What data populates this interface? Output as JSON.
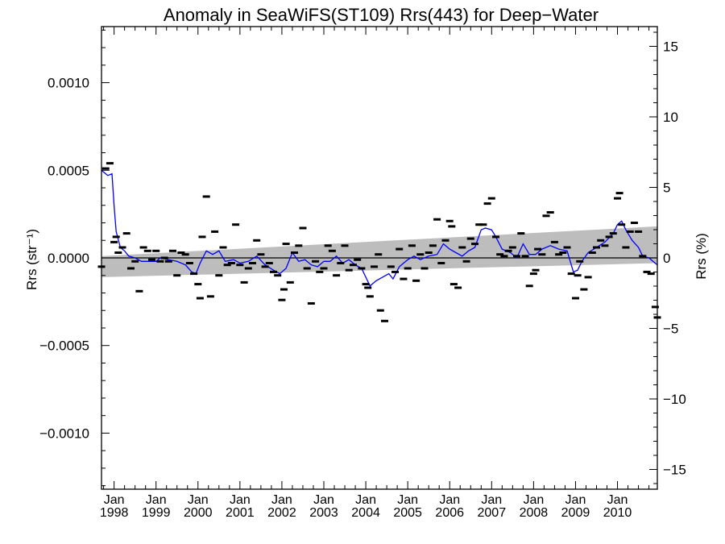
{
  "chart_data": {
    "type": "scatter",
    "title": "Anomaly in SeaWiFS(ST109) Rrs(443) for Deep−Water",
    "ylabel_left": "Rrs (str⁻¹)",
    "ylabel_right": "Rrs (%)",
    "ylim_left": [
      -0.00132,
      0.00132
    ],
    "ylim_right": [
      -16.4,
      16.4
    ],
    "xlim": [
      1997.7,
      2010.95
    ],
    "left_ticks": [
      {
        "value": 0.001,
        "label": "0.0010"
      },
      {
        "value": 0.0005,
        "label": "0.0005"
      },
      {
        "value": 0.0,
        "label": "0.0000"
      },
      {
        "value": -0.0005,
        "label": "−0.0005"
      },
      {
        "value": -0.001,
        "label": "−0.0010"
      }
    ],
    "right_ticks": [
      {
        "value": 15,
        "label": "15"
      },
      {
        "value": 10,
        "label": "10"
      },
      {
        "value": 5,
        "label": "5"
      },
      {
        "value": 0,
        "label": "0"
      },
      {
        "value": -5,
        "label": "−5"
      },
      {
        "value": -10,
        "label": "−10"
      },
      {
        "value": -15,
        "label": "−15"
      }
    ],
    "x_ticks": [
      {
        "value": 1998.0,
        "month": "Jan",
        "year": "1998"
      },
      {
        "value": 1999.0,
        "month": "Jan",
        "year": "1999"
      },
      {
        "value": 2000.0,
        "month": "Jan",
        "year": "2000"
      },
      {
        "value": 2001.0,
        "month": "Jan",
        "year": "2001"
      },
      {
        "value": 2002.0,
        "month": "Jan",
        "year": "2002"
      },
      {
        "value": 2003.0,
        "month": "Jan",
        "year": "2003"
      },
      {
        "value": 2004.0,
        "month": "Jan",
        "year": "2004"
      },
      {
        "value": 2005.0,
        "month": "Jan",
        "year": "2005"
      },
      {
        "value": 2006.0,
        "month": "Jan",
        "year": "2006"
      },
      {
        "value": 2007.0,
        "month": "Jan",
        "year": "2007"
      },
      {
        "value": 2008.0,
        "month": "Jan",
        "year": "2008"
      },
      {
        "value": 2009.0,
        "month": "Jan",
        "year": "2009"
      },
      {
        "value": 2010.0,
        "month": "Jan",
        "year": "2010"
      }
    ],
    "x_minor_step": 0.25,
    "colors": {
      "running_mean": "#0000ff",
      "band": "#bdbdbd",
      "points": "#000000",
      "zero_line": "#000000"
    },
    "trend_band": {
      "x": [
        1997.7,
        2010.95
      ],
      "upper": [
        1e-05,
        0.00018
      ],
      "lower": [
        -0.00011,
        -3e-05
      ]
    },
    "points": [
      [
        1997.7,
        -5e-05
      ],
      [
        1997.8,
        0.00051
      ],
      [
        1997.9,
        0.00054
      ],
      [
        1998.0,
        9e-05
      ],
      [
        1998.05,
        0.00012
      ],
      [
        1998.1,
        3e-05
      ],
      [
        1998.2,
        6e-05
      ],
      [
        1998.3,
        0.00014
      ],
      [
        1998.4,
        -6e-05
      ],
      [
        1998.5,
        -2e-05
      ],
      [
        1998.6,
        -0.00019
      ],
      [
        1998.7,
        6e-05
      ],
      [
        1998.8,
        4e-05
      ],
      [
        1998.9,
        -1e-05
      ],
      [
        1999.0,
        4e-05
      ],
      [
        1999.1,
        -2e-05
      ],
      [
        1999.2,
        0.0
      ],
      [
        1999.3,
        -2e-05
      ],
      [
        1999.4,
        4e-05
      ],
      [
        1999.5,
        -0.0001
      ],
      [
        1999.6,
        3e-05
      ],
      [
        1999.7,
        2e-05
      ],
      [
        1999.8,
        -3e-05
      ],
      [
        1999.9,
        -9e-05
      ],
      [
        2000.0,
        -0.00015
      ],
      [
        2000.05,
        -0.00023
      ],
      [
        2000.1,
        0.00012
      ],
      [
        2000.2,
        0.00035
      ],
      [
        2000.3,
        -0.00022
      ],
      [
        2000.4,
        0.00015
      ],
      [
        2000.5,
        -0.0001
      ],
      [
        2000.6,
        6e-05
      ],
      [
        2000.7,
        -4e-05
      ],
      [
        2000.8,
        -3e-05
      ],
      [
        2000.9,
        0.00019
      ],
      [
        2001.0,
        -4e-05
      ],
      [
        2001.1,
        -0.00014
      ],
      [
        2001.2,
        -6e-05
      ],
      [
        2001.3,
        -3e-05
      ],
      [
        2001.4,
        0.0001
      ],
      [
        2001.5,
        2e-05
      ],
      [
        2001.6,
        -5e-05
      ],
      [
        2001.7,
        -3e-05
      ],
      [
        2001.8,
        -8e-05
      ],
      [
        2001.9,
        -0.0001
      ],
      [
        2002.0,
        -0.00024
      ],
      [
        2002.05,
        -0.00018
      ],
      [
        2002.1,
        8e-05
      ],
      [
        2002.2,
        -0.00014
      ],
      [
        2002.3,
        3e-05
      ],
      [
        2002.4,
        7e-05
      ],
      [
        2002.5,
        0.00017
      ],
      [
        2002.6,
        -6e-05
      ],
      [
        2002.7,
        -0.00026
      ],
      [
        2002.8,
        -2e-05
      ],
      [
        2002.9,
        -8e-05
      ],
      [
        2003.0,
        -6e-05
      ],
      [
        2003.1,
        7e-05
      ],
      [
        2003.2,
        4e-05
      ],
      [
        2003.3,
        -0.0001
      ],
      [
        2003.4,
        -3e-05
      ],
      [
        2003.5,
        7e-05
      ],
      [
        2003.6,
        -7e-05
      ],
      [
        2003.7,
        -4e-05
      ],
      [
        2003.8,
        -1e-05
      ],
      [
        2003.9,
        -6e-05
      ],
      [
        2004.0,
        -0.00015
      ],
      [
        2004.05,
        -0.00017
      ],
      [
        2004.1,
        -0.00022
      ],
      [
        2004.2,
        -5e-05
      ],
      [
        2004.3,
        2e-05
      ],
      [
        2004.35,
        -0.0003
      ],
      [
        2004.45,
        -0.00036
      ],
      [
        2004.6,
        -5e-05
      ],
      [
        2004.7,
        -8e-05
      ],
      [
        2004.8,
        5e-05
      ],
      [
        2004.9,
        -0.00012
      ],
      [
        2005.0,
        -6e-05
      ],
      [
        2005.1,
        7e-05
      ],
      [
        2005.2,
        -0.00013
      ],
      [
        2005.3,
        2e-05
      ],
      [
        2005.4,
        -6e-05
      ],
      [
        2005.5,
        3e-05
      ],
      [
        2005.6,
        7e-05
      ],
      [
        2005.7,
        0.00022
      ],
      [
        2005.8,
        -3e-05
      ],
      [
        2005.9,
        0.0001
      ],
      [
        2006.0,
        0.00021
      ],
      [
        2006.05,
        0.00018
      ],
      [
        2006.1,
        -0.00015
      ],
      [
        2006.2,
        -0.00017
      ],
      [
        2006.3,
        6e-05
      ],
      [
        2006.4,
        -2e-05
      ],
      [
        2006.5,
        0.00011
      ],
      [
        2006.6,
        8e-05
      ],
      [
        2006.7,
        0.00019
      ],
      [
        2006.8,
        0.00019
      ],
      [
        2006.9,
        0.00031
      ],
      [
        2007.0,
        0.00034
      ],
      [
        2007.1,
        0.00012
      ],
      [
        2007.2,
        2e-05
      ],
      [
        2007.3,
        1e-05
      ],
      [
        2007.4,
        4e-05
      ],
      [
        2007.5,
        6e-05
      ],
      [
        2007.6,
        1e-05
      ],
      [
        2007.7,
        0.00014
      ],
      [
        2007.8,
        1e-05
      ],
      [
        2007.9,
        -0.00016
      ],
      [
        2008.0,
        -9e-05
      ],
      [
        2008.05,
        -7e-05
      ],
      [
        2008.1,
        5e-05
      ],
      [
        2008.2,
        2e-05
      ],
      [
        2008.3,
        0.00024
      ],
      [
        2008.4,
        0.00026
      ],
      [
        2008.5,
        9e-05
      ],
      [
        2008.6,
        2e-05
      ],
      [
        2008.7,
        3e-05
      ],
      [
        2008.8,
        6e-05
      ],
      [
        2008.9,
        -9e-05
      ],
      [
        2009.0,
        -0.00023
      ],
      [
        2009.05,
        -0.0001
      ],
      [
        2009.1,
        -2e-05
      ],
      [
        2009.2,
        -0.00018
      ],
      [
        2009.3,
        -0.00011
      ],
      [
        2009.4,
        3e-05
      ],
      [
        2009.5,
        6e-05
      ],
      [
        2009.6,
        0.0001
      ],
      [
        2009.7,
        7e-05
      ],
      [
        2009.8,
        0.00012
      ],
      [
        2009.9,
        0.00014
      ],
      [
        2010.0,
        0.00034
      ],
      [
        2010.05,
        0.00037
      ],
      [
        2010.1,
        0.00019
      ],
      [
        2010.2,
        6e-05
      ],
      [
        2010.3,
        0.00015
      ],
      [
        2010.4,
        0.0002
      ],
      [
        2010.5,
        0.00015
      ],
      [
        2010.6,
        1e-05
      ],
      [
        2010.7,
        -8e-05
      ],
      [
        2010.8,
        -9e-05
      ],
      [
        2010.9,
        -0.00028
      ],
      [
        2010.95,
        -0.00034
      ]
    ],
    "running_mean": [
      [
        1997.7,
        0.0005
      ],
      [
        1997.85,
        0.00047
      ],
      [
        1997.95,
        0.00048
      ],
      [
        1998.0,
        0.0003
      ],
      [
        1998.05,
        0.00015
      ],
      [
        1998.15,
        6e-05
      ],
      [
        1998.25,
        4e-05
      ],
      [
        1998.35,
        1e-05
      ],
      [
        1998.5,
        0.0
      ],
      [
        1998.65,
        -2e-05
      ],
      [
        1998.85,
        -2e-05
      ],
      [
        1999.0,
        -2e-05
      ],
      [
        1999.1,
        0.0
      ],
      [
        1999.3,
        -1e-05
      ],
      [
        1999.5,
        -2e-05
      ],
      [
        1999.7,
        -4e-05
      ],
      [
        1999.85,
        -8e-05
      ],
      [
        1999.95,
        -9e-05
      ],
      [
        2000.05,
        -3e-05
      ],
      [
        2000.2,
        4e-05
      ],
      [
        2000.35,
        2e-05
      ],
      [
        2000.5,
        4e-05
      ],
      [
        2000.65,
        -2e-05
      ],
      [
        2000.85,
        -1e-05
      ],
      [
        2001.0,
        -3e-05
      ],
      [
        2001.2,
        -2e-05
      ],
      [
        2001.4,
        1e-05
      ],
      [
        2001.6,
        -4e-05
      ],
      [
        2001.8,
        -7e-05
      ],
      [
        2001.95,
        -9e-05
      ],
      [
        2002.1,
        -6e-05
      ],
      [
        2002.25,
        3e-05
      ],
      [
        2002.4,
        -2e-05
      ],
      [
        2002.55,
        -1e-05
      ],
      [
        2002.7,
        -4e-05
      ],
      [
        2002.85,
        -5e-05
      ],
      [
        2003.0,
        -2e-05
      ],
      [
        2003.15,
        -2e-05
      ],
      [
        2003.3,
        1e-05
      ],
      [
        2003.45,
        -3e-05
      ],
      [
        2003.6,
        -1e-05
      ],
      [
        2003.75,
        -4e-05
      ],
      [
        2003.9,
        -6e-05
      ],
      [
        2004.0,
        -0.00011
      ],
      [
        2004.1,
        -0.00016
      ],
      [
        2004.25,
        -0.00013
      ],
      [
        2004.4,
        -0.00011
      ],
      [
        2004.55,
        -9e-05
      ],
      [
        2004.65,
        -0.00012
      ],
      [
        2004.8,
        -5e-05
      ],
      [
        2005.0,
        -1e-05
      ],
      [
        2005.15,
        1e-05
      ],
      [
        2005.3,
        -1e-05
      ],
      [
        2005.5,
        1e-05
      ],
      [
        2005.7,
        2e-05
      ],
      [
        2005.85,
        8e-05
      ],
      [
        2006.0,
        5e-05
      ],
      [
        2006.15,
        3e-05
      ],
      [
        2006.3,
        1e-05
      ],
      [
        2006.45,
        4e-05
      ],
      [
        2006.6,
        6e-05
      ],
      [
        2006.75,
        0.00016
      ],
      [
        2006.85,
        0.00017
      ],
      [
        2007.0,
        0.00016
      ],
      [
        2007.1,
        0.00012
      ],
      [
        2007.25,
        5e-05
      ],
      [
        2007.45,
        3e-05
      ],
      [
        2007.6,
        0.0
      ],
      [
        2007.75,
        8e-05
      ],
      [
        2007.9,
        2e-05
      ],
      [
        2008.05,
        2e-05
      ],
      [
        2008.2,
        5e-05
      ],
      [
        2008.4,
        7e-05
      ],
      [
        2008.6,
        5e-05
      ],
      [
        2008.8,
        4e-05
      ],
      [
        2008.95,
        -8e-05
      ],
      [
        2009.05,
        -7e-05
      ],
      [
        2009.15,
        -2e-05
      ],
      [
        2009.3,
        3e-05
      ],
      [
        2009.5,
        6e-05
      ],
      [
        2009.7,
        9e-05
      ],
      [
        2009.9,
        0.00014
      ],
      [
        2010.0,
        0.00019
      ],
      [
        2010.1,
        0.00021
      ],
      [
        2010.2,
        0.00016
      ],
      [
        2010.35,
        0.0001
      ],
      [
        2010.5,
        6e-05
      ],
      [
        2010.6,
        1e-05
      ],
      [
        2010.75,
        0.0
      ],
      [
        2010.95,
        -4e-05
      ]
    ]
  }
}
